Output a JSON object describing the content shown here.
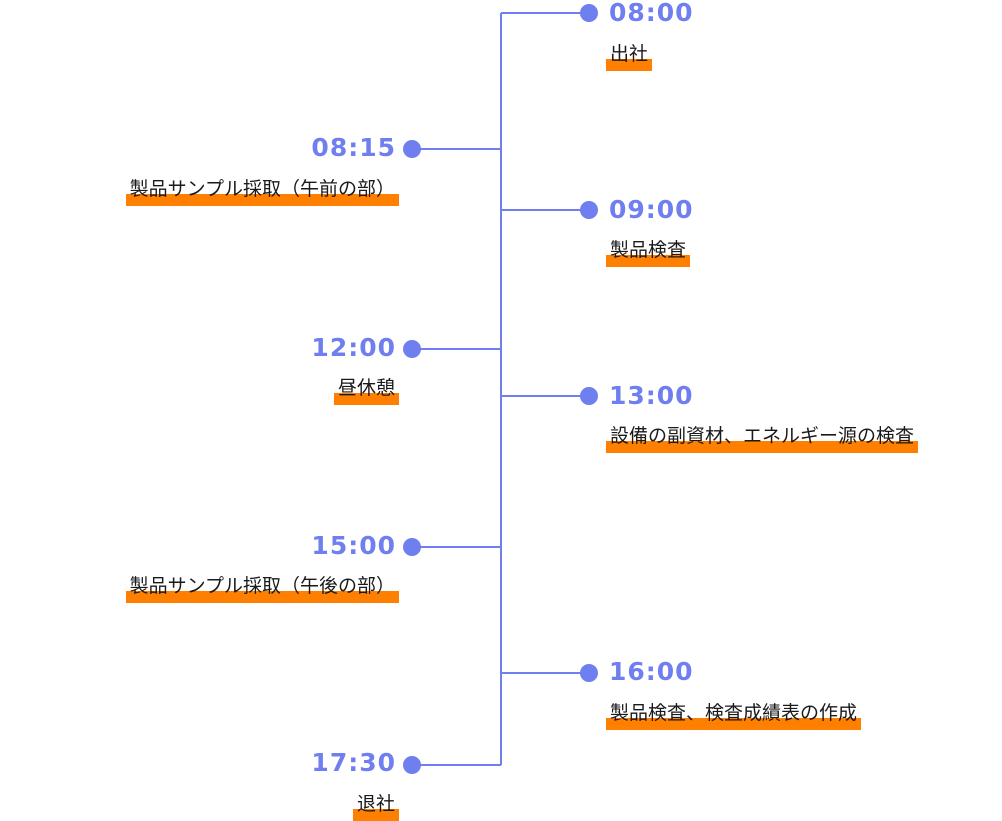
{
  "colors": {
    "accent": "#6f7ff0",
    "highlight": "#ff7f00",
    "text": "#1a1a1a"
  },
  "timeline": {
    "left": [
      {
        "time": "08:15",
        "label": "製品サンプル採取（午前の部）"
      },
      {
        "time": "12:00",
        "label": "昼休憩"
      },
      {
        "time": "15:00",
        "label": "製品サンプル採取（午後の部）"
      },
      {
        "time": "17:30",
        "label": "退社"
      }
    ],
    "right": [
      {
        "time": "08:00",
        "label": "出社"
      },
      {
        "time": "09:00",
        "label": "製品検査"
      },
      {
        "time": "13:00",
        "label": "設備の副資材、エネルギー源の検査"
      },
      {
        "time": "16:00",
        "label": "製品検査、検査成績表の作成"
      }
    ]
  }
}
